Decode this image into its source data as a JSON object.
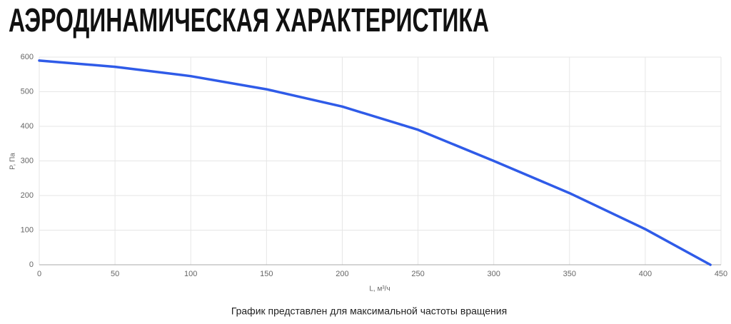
{
  "chart_data": {
    "type": "line",
    "title": "АЭРОДИНАМИЧЕСКАЯ ХАРАКТЕРИСТИКА",
    "x_label": "L, м³/ч",
    "y_label": "P, Па",
    "note": "График представлен для максимальной частоты вращения",
    "x": [
      0,
      50,
      100,
      150,
      200,
      250,
      300,
      350,
      400,
      443
    ],
    "series": [
      {
        "name": "P",
        "color": "#2f5be8",
        "values": [
          590,
          572,
          545,
          507,
          457,
          390,
          300,
          207,
          103,
          0
        ]
      }
    ],
    "xlim": [
      0,
      450
    ],
    "ylim": [
      0,
      600
    ],
    "xticks": [
      0,
      50,
      100,
      150,
      200,
      250,
      300,
      350,
      400,
      450
    ],
    "yticks": [
      0,
      100,
      200,
      300,
      400,
      500,
      600
    ],
    "grid": true
  }
}
